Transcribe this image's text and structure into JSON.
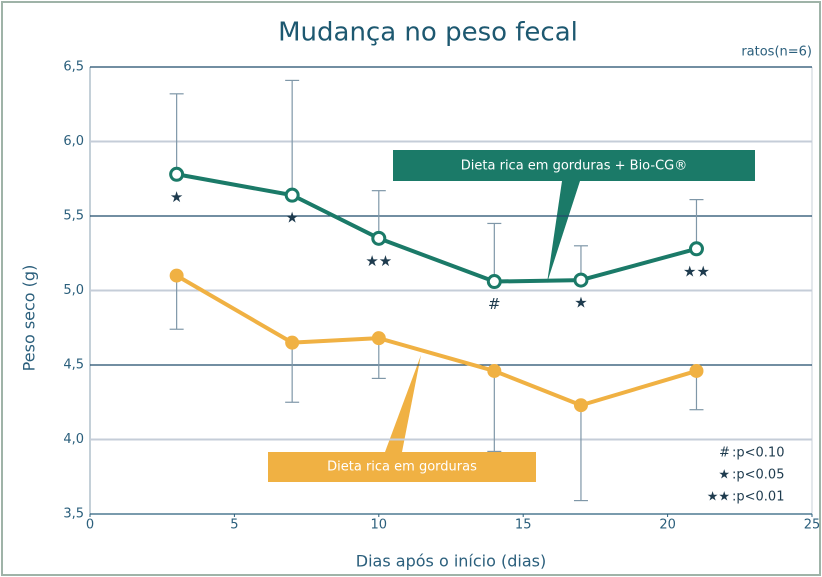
{
  "chart_data": {
    "type": "line",
    "title": "Mudança no peso fecal",
    "subtitle": "ratos(n=6)",
    "x_label": "Dias após o início (dias)",
    "y_label": "Peso seco (g)",
    "xlim": [
      0,
      25
    ],
    "xticks": [
      0,
      5,
      10,
      15,
      20,
      25
    ],
    "ylim": [
      3.5,
      6.5
    ],
    "yticks": [
      {
        "value": 3.5,
        "label": "3,5"
      },
      {
        "value": 4.0,
        "label": "4,0"
      },
      {
        "value": 4.5,
        "label": "4,5"
      },
      {
        "value": 5.0,
        "label": "5,0"
      },
      {
        "value": 5.5,
        "label": "5,5"
      },
      {
        "value": 6.0,
        "label": "6,0"
      },
      {
        "value": 6.5,
        "label": "6,5"
      }
    ],
    "grid": true,
    "x": [
      3,
      7,
      10,
      14,
      17,
      21
    ],
    "series": [
      {
        "name": "Dieta rica em gorduras + Bio-CG®",
        "color": "#1b7a68",
        "marker": "hollow",
        "values": [
          5.78,
          5.64,
          5.35,
          5.06,
          5.07,
          5.28
        ],
        "errors_up": [
          0.54,
          0.77,
          0.32,
          0.39,
          0.23,
          0.33
        ],
        "annotations": [
          "★",
          "★",
          "★★",
          "#",
          "★",
          "★★"
        ]
      },
      {
        "name": "Dieta rica em gorduras",
        "color": "#f0b143",
        "marker": "filled",
        "values": [
          5.1,
          4.65,
          4.68,
          4.46,
          4.23,
          4.46
        ],
        "errors_down": [
          0.36,
          0.4,
          0.27,
          0.54,
          0.64,
          0.26
        ]
      }
    ],
    "significance_key": [
      {
        "symbol": "#",
        "label": ":p<0.10"
      },
      {
        "symbol": "★",
        "label": ":p<0.05"
      },
      {
        "symbol": "★★",
        "label": ":p<0.01"
      }
    ]
  }
}
